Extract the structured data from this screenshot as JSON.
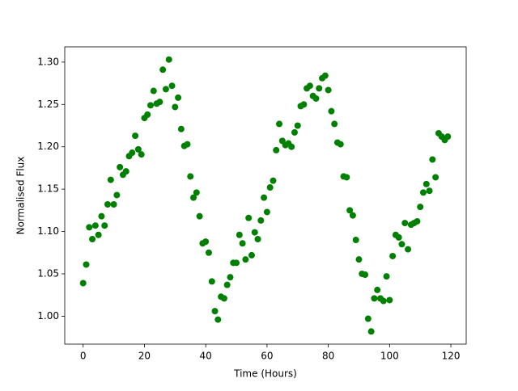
{
  "chart_data": {
    "type": "scatter",
    "x_label": "Time (Hours)",
    "y_label": "Normalised Flux",
    "color": "#008000",
    "x": [
      0,
      1,
      2,
      3,
      4,
      5,
      6,
      7,
      8,
      9,
      10,
      11,
      12,
      13,
      14,
      15,
      16,
      17,
      18,
      19,
      20,
      21,
      22,
      23,
      24,
      25,
      26,
      27,
      28,
      29,
      30,
      31,
      32,
      33,
      34,
      35,
      36,
      37,
      38,
      39,
      40,
      41,
      42,
      43,
      44,
      45,
      46,
      47,
      48,
      49,
      50,
      51,
      52,
      53,
      54,
      55,
      56,
      57,
      58,
      59,
      60,
      61,
      62,
      63,
      64,
      65,
      66,
      67,
      68,
      69,
      70,
      71,
      72,
      73,
      74,
      75,
      76,
      77,
      78,
      79,
      80,
      81,
      82,
      83,
      84,
      85,
      86,
      87,
      88,
      89,
      90,
      91,
      92,
      93,
      94,
      95,
      96,
      97,
      98,
      99,
      100,
      101,
      102,
      103,
      104,
      105,
      106,
      107,
      108,
      109,
      110,
      111,
      112,
      113,
      114,
      115,
      116,
      117,
      118,
      119
    ],
    "values": [
      1.039,
      1.061,
      1.105,
      1.091,
      1.107,
      1.096,
      1.118,
      1.107,
      1.132,
      1.161,
      1.132,
      1.143,
      1.176,
      1.167,
      1.171,
      1.189,
      1.193,
      1.213,
      1.197,
      1.191,
      1.234,
      1.238,
      1.249,
      1.266,
      1.251,
      1.253,
      1.291,
      1.268,
      1.303,
      1.272,
      1.247,
      1.258,
      1.221,
      1.201,
      1.203,
      1.165,
      1.14,
      1.146,
      1.118,
      1.086,
      1.088,
      1.075,
      1.041,
      1.006,
      0.996,
      1.023,
      1.021,
      1.037,
      1.046,
      1.063,
      1.063,
      1.096,
      1.086,
      1.067,
      1.116,
      1.072,
      1.099,
      1.091,
      1.113,
      1.14,
      1.123,
      1.152,
      1.16,
      1.196,
      1.227,
      1.207,
      1.202,
      1.204,
      1.2,
      1.217,
      1.225,
      1.248,
      1.25,
      1.269,
      1.272,
      1.26,
      1.257,
      1.269,
      1.281,
      1.284,
      1.267,
      1.242,
      1.227,
      1.205,
      1.203,
      1.165,
      1.164,
      1.125,
      1.119,
      1.09,
      1.067,
      1.05,
      1.049,
      0.997,
      0.982,
      1.021,
      1.031,
      1.021,
      1.018,
      1.047,
      1.019,
      1.071,
      1.096,
      1.093,
      1.085,
      1.11,
      1.079,
      1.108,
      1.11,
      1.112,
      1.129,
      1.146,
      1.156,
      1.148,
      1.185,
      1.164,
      1.216,
      1.212,
      1.208,
      1.212
    ],
    "xlim": [
      -6,
      125
    ],
    "ylim": [
      0.967,
      1.318
    ],
    "xticks": [
      0,
      20,
      40,
      60,
      80,
      100,
      120
    ],
    "yticks": [
      {
        "value": 1.0,
        "label": "1.00"
      },
      {
        "value": 1.05,
        "label": "1.05"
      },
      {
        "value": 1.1,
        "label": "1.10"
      },
      {
        "value": 1.15,
        "label": "1.15"
      },
      {
        "value": 1.2,
        "label": "1.20"
      },
      {
        "value": 1.25,
        "label": "1.25"
      },
      {
        "value": 1.3,
        "label": "1.30"
      }
    ]
  }
}
